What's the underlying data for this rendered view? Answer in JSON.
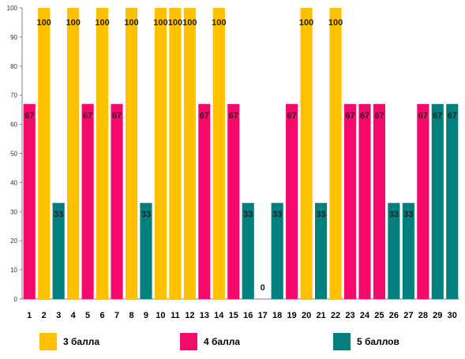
{
  "chart_data": {
    "type": "bar",
    "categories": [
      "1",
      "2",
      "3",
      "4",
      "5",
      "6",
      "7",
      "8",
      "9",
      "10",
      "11",
      "12",
      "13",
      "14",
      "15",
      "16",
      "17",
      "18",
      "19",
      "20",
      "21",
      "22",
      "23",
      "24",
      "25",
      "26",
      "27",
      "28",
      "29",
      "30"
    ],
    "values": [
      67,
      100,
      33,
      100,
      67,
      100,
      67,
      100,
      33,
      100,
      100,
      100,
      67,
      100,
      67,
      33,
      0,
      33,
      67,
      100,
      33,
      100,
      67,
      67,
      67,
      33,
      33,
      67,
      67,
      67
    ],
    "groups": [
      "4 балла",
      "3 балла",
      "5 баллов",
      "3 балла",
      "4 балла",
      "3 балла",
      "4 балла",
      "3 балла",
      "5 баллов",
      "3 балла",
      "3 балла",
      "3 балла",
      "4 балла",
      "3 балла",
      "4 балла",
      "5 баллов",
      "5 баллов",
      "5 баллов",
      "4 балла",
      "3 балла",
      "5 баллов",
      "3 балла",
      "4 балла",
      "4 балла",
      "4 балла",
      "5 баллов",
      "5 баллов",
      "4 балла",
      "5 баллов",
      "5 баллов"
    ],
    "ylim": [
      0,
      100
    ],
    "yticks": [
      0,
      10,
      20,
      30,
      40,
      50,
      60,
      70,
      80,
      90,
      100
    ],
    "grid": false,
    "legend_position": "bottom",
    "legend": [
      {
        "name": "3 балла",
        "color": "#FFC000"
      },
      {
        "name": "4 балла",
        "color": "#F50A6C"
      },
      {
        "name": "5 баллов",
        "color": "#00807F"
      }
    ]
  }
}
